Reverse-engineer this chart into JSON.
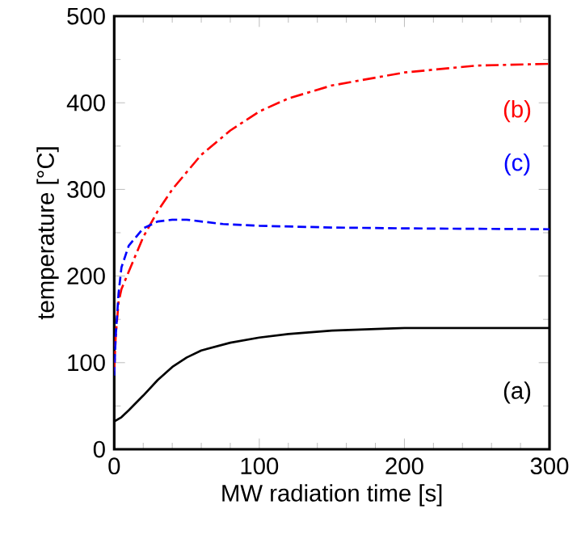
{
  "chart_data": {
    "type": "line",
    "xlabel": "MW radiation time [s]",
    "ylabel": "temperature [°C]",
    "xlim": [
      0,
      300
    ],
    "ylim": [
      0,
      500
    ],
    "xticks": [
      0,
      100,
      200,
      300
    ],
    "yticks": [
      0,
      100,
      200,
      300,
      400,
      500
    ],
    "grid": false,
    "legend": false,
    "marker": "none",
    "series": [
      {
        "name": "(a)",
        "color": "#000000",
        "line_style": "solid",
        "x": [
          0,
          5,
          10,
          20,
          30,
          40,
          50,
          60,
          80,
          100,
          120,
          150,
          200,
          250,
          300
        ],
        "values": [
          32,
          37,
          45,
          62,
          80,
          95,
          106,
          114,
          123,
          129,
          133,
          137,
          140,
          140,
          140
        ]
      },
      {
        "name": "(b)",
        "color": "#ff0000",
        "line_style": "dashdotted",
        "x": [
          0,
          1,
          3,
          5,
          10,
          20,
          30,
          40,
          50,
          60,
          80,
          100,
          120,
          150,
          200,
          250,
          300
        ],
        "values": [
          90,
          130,
          170,
          185,
          205,
          245,
          275,
          300,
          320,
          340,
          368,
          390,
          405,
          420,
          435,
          443,
          445
        ]
      },
      {
        "name": "(c)",
        "color": "#0000ff",
        "line_style": "dashed",
        "x": [
          0,
          1,
          3,
          5,
          10,
          20,
          30,
          40,
          50,
          75,
          100,
          150,
          200,
          300
        ],
        "values": [
          85,
          130,
          180,
          210,
          235,
          255,
          263,
          265,
          265,
          260,
          258,
          256,
          255,
          254
        ]
      }
    ]
  }
}
